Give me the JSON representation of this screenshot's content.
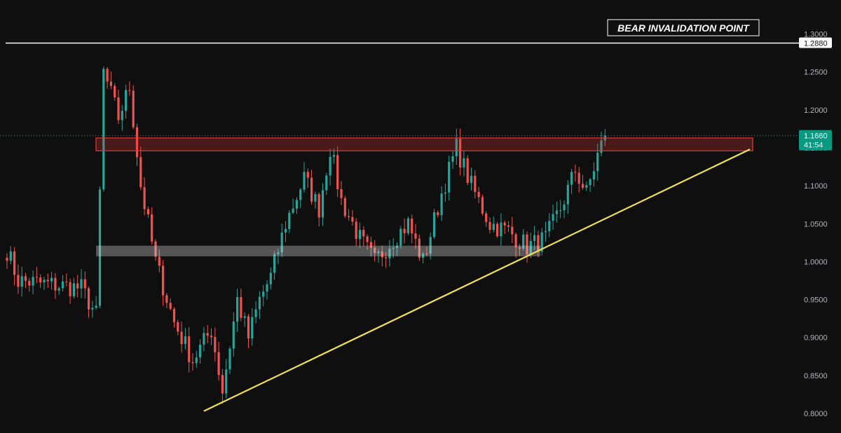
{
  "chart_data": {
    "type": "candlestick",
    "xlabel": "",
    "ylabel": "",
    "ylim": [
      0.79,
      1.31
    ],
    "y_ticks": [
      "1.3000",
      "1.2500",
      "1.2000",
      "1.1500",
      "1.1000",
      "1.0500",
      "1.0000",
      "0.9500",
      "0.9000",
      "0.8500",
      "0.8000"
    ],
    "grid": false,
    "colors": {
      "background": "#0f0f10",
      "up": "#26a69a",
      "down": "#ef5350",
      "resistance": "#e53935",
      "support": "#d9d9d9",
      "trendline": "#f2e055",
      "level_line": "#ffffff"
    },
    "price_path": [
      [
        0,
        1.015
      ],
      [
        3,
        0.975
      ],
      [
        20,
        0.965
      ],
      [
        24,
        0.93
      ],
      [
        26,
        1.25
      ],
      [
        30,
        1.19
      ],
      [
        33,
        1.23
      ],
      [
        36,
        1.1
      ],
      [
        40,
        1.0
      ],
      [
        45,
        0.92
      ],
      [
        50,
        0.87
      ],
      [
        55,
        0.91
      ],
      [
        58,
        0.83
      ],
      [
        62,
        0.95
      ],
      [
        65,
        0.9
      ],
      [
        68,
        0.95
      ],
      [
        71,
        0.98
      ],
      [
        75,
        1.05
      ],
      [
        80,
        1.11
      ],
      [
        84,
        1.07
      ],
      [
        87,
        1.15
      ],
      [
        90,
        1.08
      ],
      [
        95,
        1.03
      ],
      [
        99,
        1.0
      ],
      [
        104,
        1.03
      ],
      [
        108,
        1.05
      ],
      [
        112,
        1.0
      ],
      [
        117,
        1.09
      ],
      [
        121,
        1.15
      ],
      [
        125,
        1.1
      ],
      [
        130,
        1.05
      ],
      [
        135,
        1.04
      ],
      [
        140,
        1.02
      ],
      [
        145,
        1.03
      ],
      [
        149,
        1.07
      ],
      [
        153,
        1.12
      ],
      [
        156,
        1.09
      ],
      [
        159,
        1.14
      ],
      [
        161,
        1.166
      ]
    ],
    "price_level": {
      "label": "1.2880",
      "value": 1.288
    },
    "current_price": {
      "label": "1.1660",
      "value": 1.166,
      "countdown": "41:54"
    },
    "resistance_zone": {
      "from": 1.146,
      "to": 1.163
    },
    "support_zone": {
      "from": 1.007,
      "to": 1.021
    },
    "trendline": {
      "from": {
        "bar": 53,
        "price": 0.803
      },
      "to": {
        "bar": 200,
        "price": 1.148
      }
    },
    "annotations": [
      {
        "text": "BEAR INVALIDATION POINT"
      }
    ]
  }
}
